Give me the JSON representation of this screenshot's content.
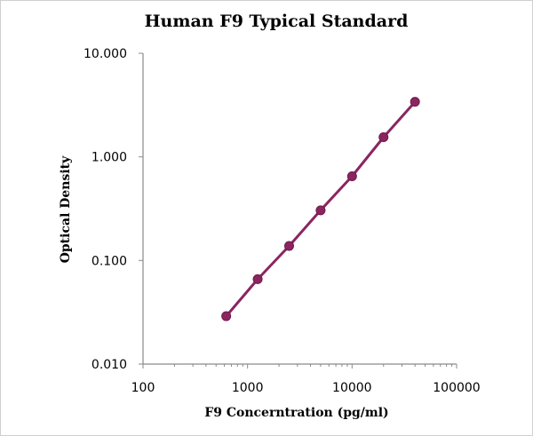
{
  "chart_data": {
    "type": "scatter",
    "title": "Human F9 Typical Standard",
    "xlabel": "F9 Concerntration (pg/ml)",
    "ylabel": "Optical Density",
    "x_scale": "log",
    "y_scale": "log",
    "xlim": [
      100,
      100000
    ],
    "ylim": [
      0.01,
      10
    ],
    "x_ticks": [
      "100",
      "1000",
      "10000",
      "100000"
    ],
    "y_ticks": [
      "0.010",
      "0.100",
      "1.000",
      "10.000"
    ],
    "grid": false,
    "legend": "none",
    "series": [
      {
        "x": [
          625,
          1250,
          2500,
          5000,
          10000,
          20000,
          40000
        ],
        "y": [
          0.029,
          0.066,
          0.138,
          0.305,
          0.65,
          1.55,
          3.4
        ],
        "style": "markers+line"
      }
    ],
    "colors": {
      "series": "#8b2560",
      "axis": "#8a8a8a"
    }
  }
}
